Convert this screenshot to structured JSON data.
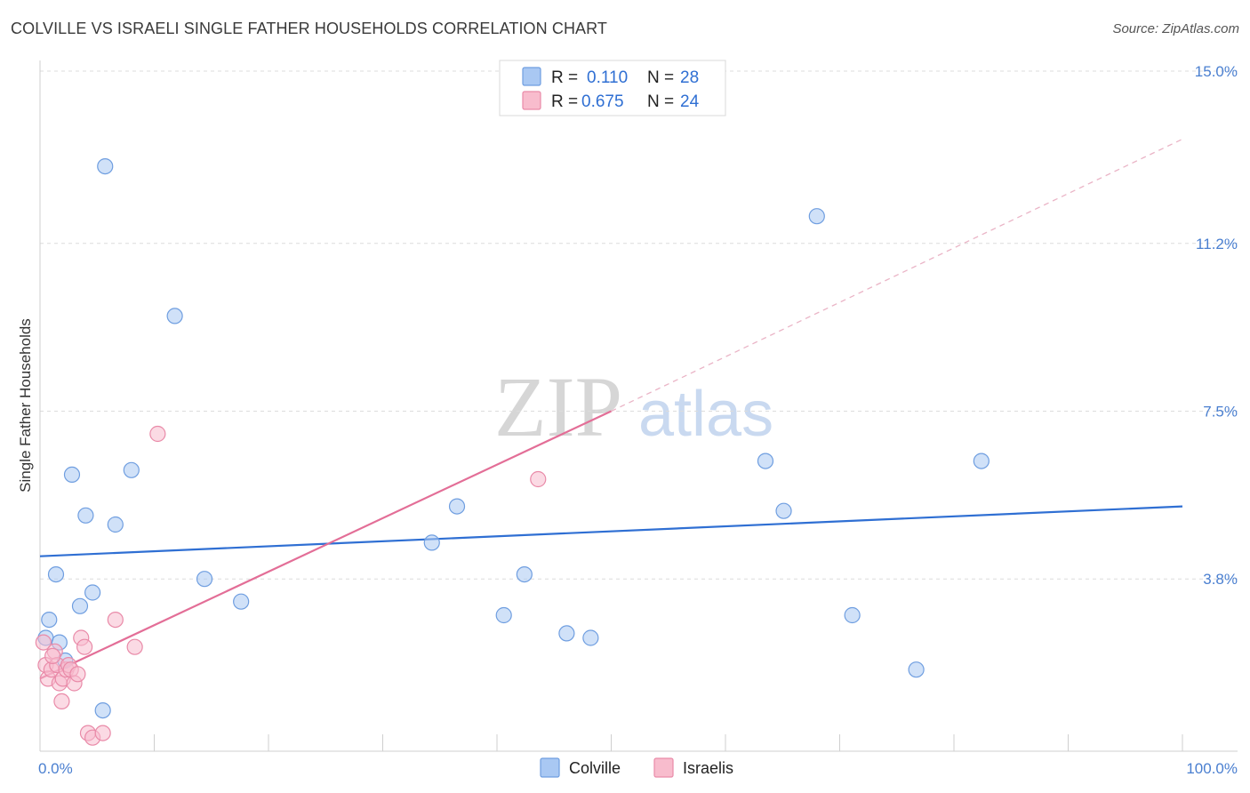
{
  "title": "COLVILLE VS ISRAELI SINGLE FATHER HOUSEHOLDS CORRELATION CHART",
  "source": "Source: ZipAtlas.com",
  "watermark": {
    "zip": "ZIP",
    "atlas": "atlas"
  },
  "chart_data": {
    "type": "scatter",
    "ylabel": "Single Father Households",
    "xlabel": "",
    "xlim": [
      0,
      100
    ],
    "ylim": [
      0,
      15.0
    ],
    "x_tick_labels": [
      {
        "value": 0,
        "label": "0.0%"
      },
      {
        "value": 100,
        "label": "100.0%"
      }
    ],
    "y_tick_labels": [
      {
        "value": 3.8,
        "label": "3.8%"
      },
      {
        "value": 7.5,
        "label": "7.5%"
      },
      {
        "value": 11.2,
        "label": "11.2%"
      },
      {
        "value": 15.0,
        "label": "15.0%"
      }
    ],
    "legend": [
      {
        "name": "Colville",
        "r_label": "R =",
        "r_value": "0.110",
        "n_label": "N =",
        "n_value": "28",
        "color": "#a9c8f3",
        "stroke": "#6f9ee0"
      },
      {
        "name": "Israelis",
        "r_label": "R =",
        "r_value": "0.675",
        "n_label": "N =",
        "n_value": "24",
        "color": "#f8bccd",
        "stroke": "#e98aa8"
      }
    ],
    "series": [
      {
        "name": "Colville",
        "color": "#a9c8f3",
        "stroke": "#6f9ee0",
        "points": [
          [
            5.7,
            12.9
          ],
          [
            11.8,
            9.6
          ],
          [
            0.5,
            2.5
          ],
          [
            0.8,
            2.9
          ],
          [
            1.4,
            3.9
          ],
          [
            1.7,
            2.4
          ],
          [
            2.8,
            6.1
          ],
          [
            3.5,
            3.2
          ],
          [
            4.0,
            5.2
          ],
          [
            4.6,
            3.5
          ],
          [
            2.2,
            2.0
          ],
          [
            5.5,
            0.9
          ],
          [
            6.6,
            5.0
          ],
          [
            8.0,
            6.2
          ],
          [
            14.4,
            3.8
          ],
          [
            17.6,
            3.3
          ],
          [
            34.3,
            4.6
          ],
          [
            36.5,
            5.4
          ],
          [
            40.6,
            3.0
          ],
          [
            42.4,
            3.9
          ],
          [
            46.1,
            2.6
          ],
          [
            48.2,
            2.5
          ],
          [
            63.5,
            6.4
          ],
          [
            65.1,
            5.3
          ],
          [
            68.0,
            11.8
          ],
          [
            71.1,
            3.0
          ],
          [
            76.7,
            1.8
          ],
          [
            82.4,
            6.4
          ]
        ],
        "trend": {
          "x0": 0,
          "y0": 4.3,
          "x1": 100,
          "y1": 5.4
        }
      },
      {
        "name": "Israelis",
        "color": "#f8bccd",
        "stroke": "#e98aa8",
        "points": [
          [
            0.3,
            2.4
          ],
          [
            0.5,
            1.9
          ],
          [
            0.7,
            1.6
          ],
          [
            1.0,
            1.8
          ],
          [
            1.3,
            2.2
          ],
          [
            1.5,
            1.9
          ],
          [
            1.7,
            1.5
          ],
          [
            2.0,
            1.6
          ],
          [
            2.3,
            1.8
          ],
          [
            2.5,
            1.9
          ],
          [
            2.7,
            1.8
          ],
          [
            3.0,
            1.5
          ],
          [
            3.3,
            1.7
          ],
          [
            3.6,
            2.5
          ],
          [
            3.9,
            2.3
          ],
          [
            1.9,
            1.1
          ],
          [
            4.2,
            0.4
          ],
          [
            4.6,
            0.3
          ],
          [
            5.5,
            0.4
          ],
          [
            6.6,
            2.9
          ],
          [
            8.3,
            2.3
          ],
          [
            10.3,
            7.0
          ],
          [
            43.6,
            6.0
          ],
          [
            1.1,
            2.1
          ]
        ],
        "trend": {
          "x0": 0,
          "y0": 1.6,
          "x1": 50,
          "y1": 7.5
        },
        "trend_extension": {
          "x0": 50,
          "y0": 7.5,
          "x1": 100,
          "y1": 13.5
        }
      }
    ]
  }
}
